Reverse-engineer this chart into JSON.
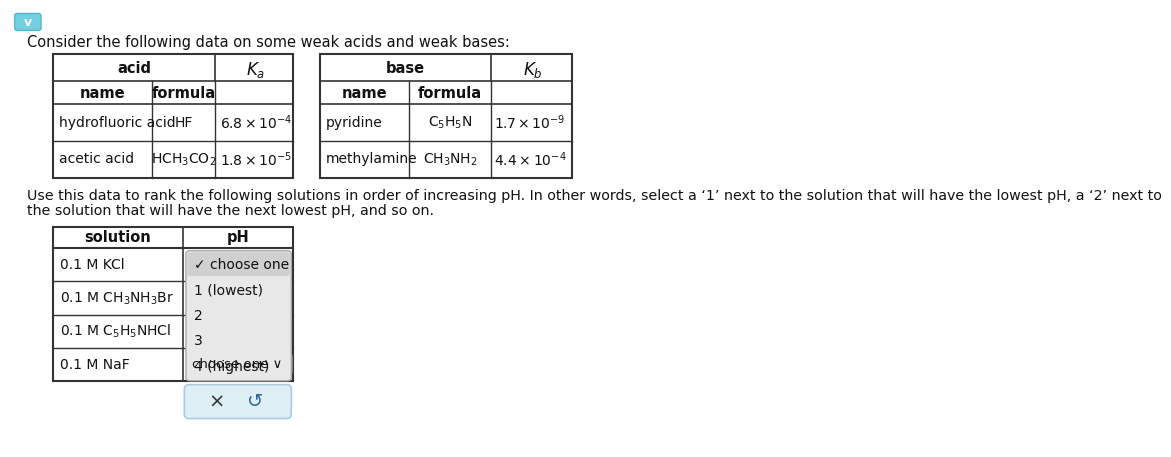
{
  "bg_color": "#ffffff",
  "page_bg": "#e8f4f8",
  "title_text": "Consider the following data on some weak acids and weak bases:",
  "acid_rows": [
    [
      "hydrofluoric acid",
      "HF",
      "$6.8 \\times 10^{-4}$"
    ],
    [
      "acetic acid",
      "HCH$_3$CO$_2$",
      "$1.8 \\times 10^{-5}$"
    ]
  ],
  "base_rows": [
    [
      "pyridine",
      "C$_5$H$_5$N",
      "$1.7 \\times 10^{-9}$"
    ],
    [
      "methylamine",
      "CH$_3$NH$_2$",
      "$4.4 \\times 10^{-4}$"
    ]
  ],
  "instruction_line1": "Use this data to rank the following solutions in order of increasing pH. In other words, select a ‘1’ next to the solution that will have the lowest pH, a ‘2’ next to",
  "instruction_line2": "the solution that will have the next lowest pH, and so on.",
  "sol_labels": [
    "0.1 M KCl",
    "0.1 M CH$_3$NH$_3$Br",
    "0.1 M C$_5$H$_5$NHCl",
    "0.1 M NaF"
  ],
  "dropdown_items": [
    "✓ choose one",
    "1 (lowest)",
    "2",
    "3",
    "4 (highest)"
  ],
  "closed_dropdown": "choose one ∨",
  "btn_x": "×",
  "btn_r": "↺"
}
